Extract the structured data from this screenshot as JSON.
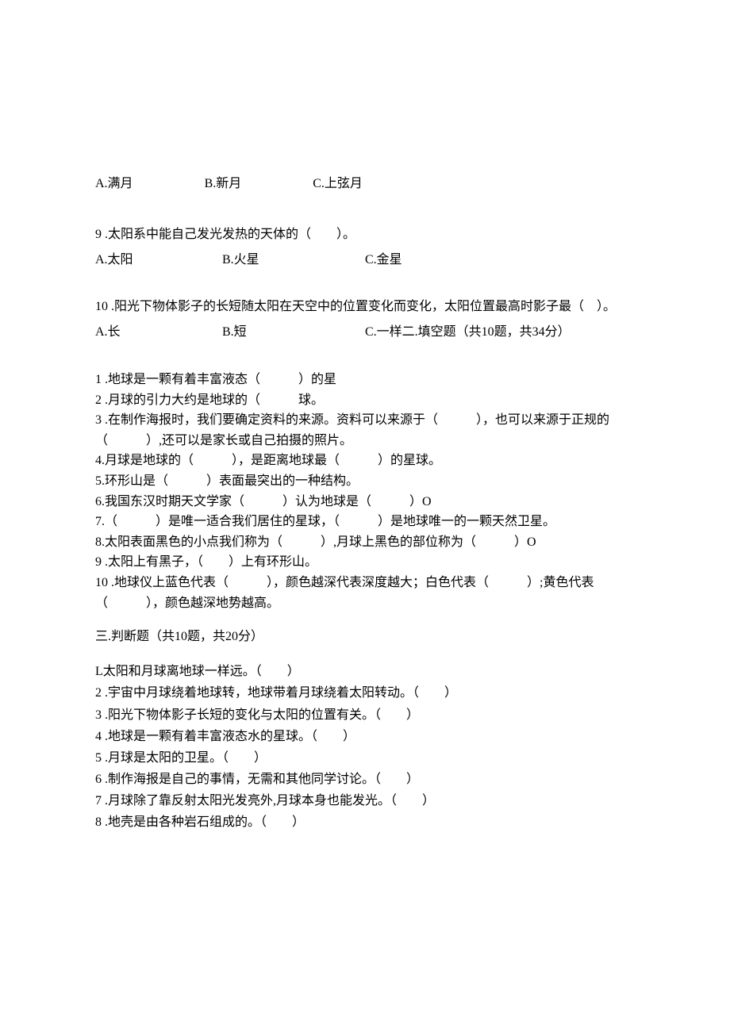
{
  "q8_options": {
    "a": "A.满月",
    "b": "B.新月",
    "c": "C.上弦月"
  },
  "q9": {
    "text": "9 .太阳系中能自己发光发热的天体的（　　）。",
    "a": "A.太阳",
    "b": "B.火星",
    "c": "C.金星"
  },
  "q10": {
    "line1": "10 .阳光下物体影子的长短随太阳在天空中的位置变化而变化，太阳位置最高时影子最（　）。",
    "a": "A.长",
    "b": "B.短",
    "c": "C.一样二.填空题（共10题，共34分）"
  },
  "fill": {
    "l1": "1 .地球是一颗有着丰富液态（　　　）的星",
    "l2": "2 .月球的引力大约是地球的（　　　球。",
    "l3": "3 .在制作海报时，我们要确定资料的来源。资料可以来源于（　　　），也可以来源于正规的（　　　）,还可以是家长或自己拍摄的照片。",
    "l4": "4.月球是地球的（　　　），是距离地球最（　　　）的星球。",
    "l5": "5.环形山是（　　　）表面最突出的一种结构。",
    "l6": "6.我国东汉时期天文学家（　　　）认为地球是（　　　）O",
    "l7": "7.（　　　）是唯一适合我们居住的星球，（　　　）是地球唯一的一颗天然卫星。",
    "l8": "8.太阳表面黑色的小点我们称为（　　　）,月球上黑色的部位称为（　　　）O",
    "l9": "9 .太阳上有黑子，（　　）上有环形山。",
    "l10": "10 .地球仪上蓝色代表（　　　），颜色越深代表深度越大；白色代表（　　　）;黄色代表（　　　），颜色越深地势越高。"
  },
  "section3_header": "三.判断题（共10题，共20分）",
  "judge": {
    "l1": "L太阳和月球离地球一样远。（　　）",
    "l2": "2 .宇宙中月球绕着地球转，地球带着月球绕着太阳转动。（　　）",
    "l3": "3 .阳光下物体影子长短的变化与太阳的位置有关。（　　）",
    "l4": "4 .地球是一颗有着丰富液态水的星球。（　　）",
    "l5": "5 .月球是太阳的卫星。（　　）",
    "l6": "6 .制作海报是自己的事情，无需和其他同学讨论。（　　）",
    "l7": "7 .月球除了靠反射太阳光发亮外,月球本身也能发光。（　　）",
    "l8": "8 .地壳是由各种岩石组成的。（　　）"
  }
}
